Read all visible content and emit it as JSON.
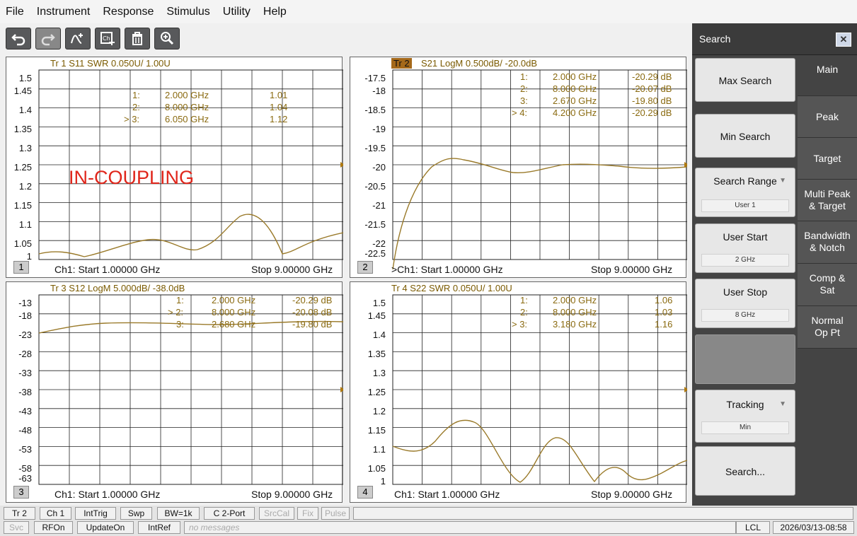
{
  "menu": [
    "File",
    "Instrument",
    "Response",
    "Stimulus",
    "Utility",
    "Help"
  ],
  "toolbar": {
    "icons": [
      "undo-icon",
      "redo-icon",
      "add-trace-icon",
      "add-channel-icon",
      "delete-icon",
      "zoom-icon"
    ]
  },
  "panes": [
    {
      "id": 1,
      "title": "Tr 1  S11 SWR 0.050U/  1.00U",
      "title_highlight": "",
      "yticks": [
        "1.5",
        "1.45",
        "1.4",
        "1.35",
        "1.3",
        "1.25",
        "1.2",
        "1.15",
        "1.1",
        "1.05",
        "1"
      ],
      "markers": [
        {
          "label": "1:",
          "freq": "2.000 GHz",
          "val": "1.01"
        },
        {
          "label": "2:",
          "freq": "8.000 GHz",
          "val": "1.04"
        },
        {
          "label": "> 3:",
          "freq": "6.050 GHz",
          "val": "1.12"
        }
      ],
      "footer_start": "Ch1: Start  1.00000 GHz",
      "footer_stop": "Stop  9.00000 GHz",
      "chnum": "1",
      "annotation": "IN-COUPLING"
    },
    {
      "id": 2,
      "title": "S21 LogM 0.500dB/  -20.0dB",
      "title_highlight": "Tr 2",
      "yticks": [
        "-17.5",
        "-18",
        "-18.5",
        "-19",
        "-19.5",
        "-20",
        "-20.5",
        "-21",
        "-21.5",
        "-22",
        "-22.5"
      ],
      "markers": [
        {
          "label": "1:",
          "freq": "2.000 GHz",
          "val": "-20.29 dB"
        },
        {
          "label": "2:",
          "freq": "8.000 GHz",
          "val": "-20.07 dB"
        },
        {
          "label": "3:",
          "freq": "2.670 GHz",
          "val": "-19.80 dB"
        },
        {
          "label": "> 4:",
          "freq": "4.200 GHz",
          "val": "-20.29 dB"
        }
      ],
      "footer_start": ">Ch1: Start  1.00000 GHz",
      "footer_stop": "Stop  9.00000 GHz",
      "chnum": "2",
      "annotation": ""
    },
    {
      "id": 3,
      "title": "Tr 3  S12 LogM 5.000dB/  -38.0dB",
      "title_highlight": "",
      "yticks": [
        "-13",
        "-18",
        "-23",
        "-28",
        "-33",
        "-38",
        "-43",
        "-48",
        "-53",
        "-58",
        "-63"
      ],
      "markers": [
        {
          "label": "1:",
          "freq": "2.000 GHz",
          "val": "-20.29 dB"
        },
        {
          "label": "> 2:",
          "freq": "8.000 GHz",
          "val": "-20.08 dB"
        },
        {
          "label": "3:",
          "freq": "2.680 GHz",
          "val": "-19.80 dB"
        }
      ],
      "footer_start": "Ch1: Start  1.00000 GHz",
      "footer_stop": "Stop  9.00000 GHz",
      "chnum": "3",
      "annotation": ""
    },
    {
      "id": 4,
      "title": "Tr 4  S22 SWR 0.050U/  1.00U",
      "title_highlight": "",
      "yticks": [
        "1.5",
        "1.45",
        "1.4",
        "1.35",
        "1.3",
        "1.25",
        "1.2",
        "1.15",
        "1.1",
        "1.05",
        "1"
      ],
      "markers": [
        {
          "label": "1:",
          "freq": "2.000 GHz",
          "val": "1.06"
        },
        {
          "label": "2:",
          "freq": "8.000 GHz",
          "val": "1.03"
        },
        {
          "label": "> 3:",
          "freq": "3.180 GHz",
          "val": "1.16"
        }
      ],
      "footer_start": "Ch1: Start  1.00000 GHz",
      "footer_stop": "Stop  9.00000 GHz",
      "chnum": "4",
      "annotation": ""
    }
  ],
  "sidepanel": {
    "title": "Search",
    "buttons": {
      "max": "Max Search",
      "min": "Min Search",
      "range": "Search Range",
      "range_val": "User 1",
      "ustart": "User Start",
      "ustart_val": "2 GHz",
      "ustop": "User Stop",
      "ustop_val": "8 GHz",
      "tracking": "Tracking",
      "tracking_val": "Min",
      "search": "Search..."
    },
    "tabs": [
      "Main",
      "Peak",
      "Target",
      "Multi Peak & Target",
      "Bandwidth & Notch",
      "Comp & Sat",
      "Normal Op Pt"
    ]
  },
  "status": {
    "row1": [
      "Tr 2",
      "Ch 1",
      "IntTrig",
      "Swp",
      "BW=1k",
      "C  2-Port",
      "SrcCal",
      "Fix",
      "Pulse"
    ],
    "row2": [
      "Svc",
      "RFOn",
      "UpdateOn",
      "IntRef"
    ],
    "message": "no messages",
    "lcl": "LCL",
    "datetime": "2026/03/13-08:58"
  },
  "colors": {
    "trace": "#9a7a2a",
    "annotation": "#e0261b",
    "highlight": "#a5691a"
  }
}
